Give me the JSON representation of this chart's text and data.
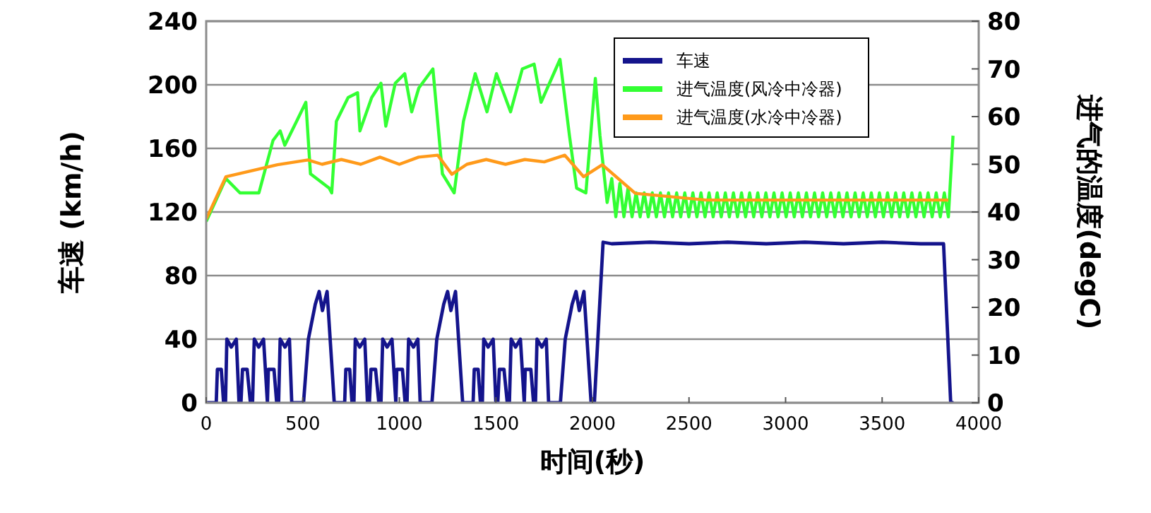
{
  "chart_data": {
    "type": "line",
    "xlabel": "时间(秒)",
    "ylabel": "车速 (km/h)",
    "y2label": "进气的温度(degC)",
    "xlim": [
      0,
      4000
    ],
    "xticks": [
      0,
      500,
      1000,
      1500,
      2000,
      2500,
      3000,
      3500,
      4000
    ],
    "ylim": [
      0,
      240
    ],
    "yticks": [
      0,
      40,
      80,
      120,
      160,
      200,
      240
    ],
    "y2lim": [
      0,
      80
    ],
    "y2ticks": [
      0,
      10,
      20,
      30,
      40,
      50,
      60,
      70,
      80
    ],
    "grid": "y",
    "legend": "top right",
    "series": [
      {
        "name": "车速",
        "color": "#14148c",
        "x": [
          0,
          52,
          58,
          78,
          90,
          100,
          107,
          130,
          156,
          170,
          180,
          188,
          212,
          229,
          240,
          249,
          272,
          297,
          317,
          322,
          351,
          365,
          375,
          383,
          408,
          431,
          443,
          504,
          529,
          565,
          585,
          602,
          626,
          663,
          665,
          717,
          723,
          743,
          755,
          765,
          772,
          795,
          821,
          835,
          845,
          853,
          877,
          894,
          905,
          914,
          937,
          962,
          982,
          987,
          1016,
          1030,
          1040,
          1048,
          1073,
          1096,
          1108,
          1169,
          1194,
          1230,
          1250,
          1267,
          1291,
          1328,
          1330,
          1382,
          1388,
          1408,
          1420,
          1430,
          1437,
          1460,
          1486,
          1500,
          1510,
          1518,
          1542,
          1559,
          1570,
          1579,
          1602,
          1627,
          1647,
          1652,
          1681,
          1695,
          1705,
          1713,
          1738,
          1761,
          1773,
          1834,
          1859,
          1895,
          1915,
          1932,
          1956,
          1993,
          2010,
          2055,
          2100,
          2300,
          2500,
          2700,
          2900,
          3100,
          3300,
          3500,
          3700,
          3818,
          3855,
          3870
        ],
        "values": [
          0,
          0,
          21,
          21,
          0,
          0,
          40,
          35,
          40,
          0,
          0,
          21,
          21,
          0,
          0,
          40,
          35,
          40,
          0,
          21,
          21,
          0,
          0,
          40,
          35,
          40,
          0,
          0,
          40,
          62,
          70,
          58,
          70,
          0,
          0,
          0,
          21,
          21,
          0,
          0,
          40,
          35,
          40,
          0,
          0,
          21,
          21,
          0,
          0,
          40,
          35,
          40,
          0,
          21,
          21,
          0,
          0,
          40,
          35,
          40,
          0,
          0,
          40,
          62,
          70,
          58,
          70,
          0,
          0,
          0,
          21,
          21,
          0,
          0,
          40,
          35,
          40,
          0,
          0,
          21,
          21,
          0,
          0,
          40,
          35,
          40,
          0,
          21,
          21,
          0,
          0,
          40,
          35,
          40,
          0,
          0,
          40,
          62,
          70,
          58,
          70,
          0,
          0,
          101,
          100,
          101,
          100,
          101,
          100,
          101,
          100,
          101,
          100,
          100,
          0,
          0
        ]
      },
      {
        "name": "进气温度(风冷中冷器)",
        "color": "#33ff33",
        "axis": "y2",
        "x": [
          0,
          102,
          175,
          273,
          346,
          383,
          407,
          468,
          516,
          540,
          637,
          650,
          674,
          735,
          784,
          796,
          857,
          905,
          930,
          979,
          1028,
          1064,
          1101,
          1174,
          1223,
          1284,
          1332,
          1393,
          1454,
          1503,
          1576,
          1637,
          1698,
          1734,
          1832,
          1881,
          1918,
          1966,
          2015,
          2039,
          2076,
          2100,
          2121,
          2142,
          2163,
          2184,
          2205,
          2226,
          2247,
          2268,
          2289,
          2310,
          2331,
          2352,
          2373,
          2394,
          2415,
          2436,
          2457,
          2478,
          2499,
          2520,
          2541,
          2562,
          2583,
          2604,
          2625,
          2646,
          2667,
          2688,
          2709,
          2730,
          2751,
          2772,
          2793,
          2814,
          2835,
          2856,
          2877,
          2898,
          2919,
          2940,
          2961,
          2982,
          3003,
          3024,
          3045,
          3066,
          3087,
          3108,
          3129,
          3150,
          3171,
          3192,
          3213,
          3234,
          3255,
          3276,
          3297,
          3318,
          3339,
          3360,
          3381,
          3402,
          3423,
          3444,
          3465,
          3486,
          3507,
          3528,
          3549,
          3570,
          3591,
          3612,
          3633,
          3654,
          3675,
          3696,
          3717,
          3738,
          3759,
          3780,
          3801,
          3822,
          3843,
          3867
        ],
        "values": [
          38,
          47,
          44,
          44,
          55,
          57,
          54,
          59,
          63,
          48,
          45,
          44,
          59,
          64,
          65,
          57,
          64,
          67,
          58,
          67,
          69,
          61,
          66,
          70,
          48,
          44,
          59,
          69,
          61,
          69,
          61,
          70,
          71,
          63,
          72,
          56,
          45,
          44,
          68,
          56,
          42,
          47,
          39,
          46,
          39,
          45,
          39,
          44,
          39,
          44,
          39,
          44,
          39,
          44,
          39,
          44,
          39,
          44,
          39,
          44,
          39,
          44,
          39,
          44,
          39,
          44,
          39,
          44,
          39,
          44,
          39,
          44,
          39,
          44,
          39,
          44,
          39,
          44,
          39,
          44,
          39,
          44,
          39,
          44,
          39,
          44,
          39,
          44,
          39,
          44,
          39,
          44,
          39,
          44,
          39,
          44,
          39,
          44,
          39,
          44,
          39,
          44,
          39,
          44,
          39,
          44,
          39,
          44,
          39,
          44,
          39,
          44,
          39,
          44,
          39,
          44,
          39,
          44,
          39,
          44,
          39,
          44,
          39,
          44,
          39,
          56
        ]
      },
      {
        "name": "进气温度(水冷中冷器)",
        "color": "#ff9a1a",
        "axis": "y2",
        "x": [
          0,
          102,
          369,
          527,
          600,
          700,
          800,
          900,
          1000,
          1100,
          1199,
          1272,
          1350,
          1450,
          1550,
          1650,
          1750,
          1857,
          1954,
          2051,
          2222,
          2588,
          2800,
          3000,
          3200,
          3400,
          3600,
          3843
        ],
        "values": [
          38.5,
          47.4,
          49.9,
          50.9,
          50,
          51,
          50,
          51.5,
          50,
          51.5,
          51.9,
          47.9,
          50,
          51,
          50,
          51,
          50.5,
          51.9,
          47.4,
          49.9,
          43.9,
          42.5,
          42.5,
          42.5,
          42.5,
          42.5,
          42.5,
          42.5
        ]
      }
    ]
  }
}
